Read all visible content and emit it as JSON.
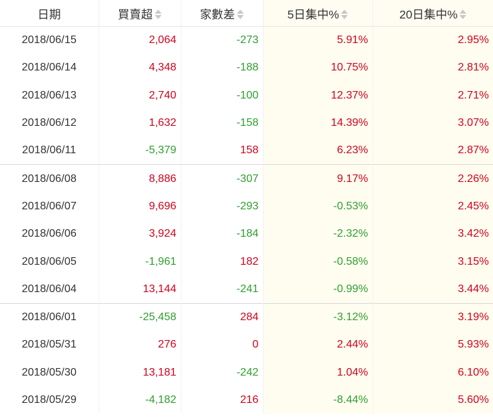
{
  "table": {
    "headers": {
      "date": "日期",
      "net_buy": "買賣超",
      "broker_diff": "家數差",
      "conc_5d": "5日集中%",
      "conc_20d": "20日集中%"
    },
    "rows": [
      {
        "date": "2018/06/15",
        "net_buy": "2,064",
        "broker_diff": "-273",
        "conc_5d": "5.91%",
        "conc_20d": "2.95%"
      },
      {
        "date": "2018/06/14",
        "net_buy": "4,348",
        "broker_diff": "-188",
        "conc_5d": "10.75%",
        "conc_20d": "2.81%"
      },
      {
        "date": "2018/06/13",
        "net_buy": "2,740",
        "broker_diff": "-100",
        "conc_5d": "12.37%",
        "conc_20d": "2.71%"
      },
      {
        "date": "2018/06/12",
        "net_buy": "1,632",
        "broker_diff": "-158",
        "conc_5d": "14.39%",
        "conc_20d": "3.07%"
      },
      {
        "date": "2018/06/11",
        "net_buy": "-5,379",
        "broker_diff": "158",
        "conc_5d": "6.23%",
        "conc_20d": "2.87%"
      },
      {
        "date": "2018/06/08",
        "net_buy": "8,886",
        "broker_diff": "-307",
        "conc_5d": "9.17%",
        "conc_20d": "2.26%"
      },
      {
        "date": "2018/06/07",
        "net_buy": "9,696",
        "broker_diff": "-293",
        "conc_5d": "-0.53%",
        "conc_20d": "2.45%"
      },
      {
        "date": "2018/06/06",
        "net_buy": "3,924",
        "broker_diff": "-184",
        "conc_5d": "-2.32%",
        "conc_20d": "3.42%"
      },
      {
        "date": "2018/06/05",
        "net_buy": "-1,961",
        "broker_diff": "182",
        "conc_5d": "-0.58%",
        "conc_20d": "3.15%"
      },
      {
        "date": "2018/06/04",
        "net_buy": "13,144",
        "broker_diff": "-241",
        "conc_5d": "-0.99%",
        "conc_20d": "3.44%"
      },
      {
        "date": "2018/06/01",
        "net_buy": "-25,458",
        "broker_diff": "284",
        "conc_5d": "-3.12%",
        "conc_20d": "3.19%"
      },
      {
        "date": "2018/05/31",
        "net_buy": "276",
        "broker_diff": "0",
        "conc_5d": "2.44%",
        "conc_20d": "5.93%"
      },
      {
        "date": "2018/05/30",
        "net_buy": "13,181",
        "broker_diff": "-242",
        "conc_5d": "1.04%",
        "conc_20d": "6.10%"
      },
      {
        "date": "2018/05/29",
        "net_buy": "-4,182",
        "broker_diff": "216",
        "conc_5d": "-8.44%",
        "conc_20d": "5.60%"
      }
    ]
  },
  "colors": {
    "positive": "#d0021b",
    "negative": "#2e9e2e",
    "highlight_bg": "#fffdf0"
  },
  "icons": {
    "sort": "sort-icon"
  }
}
